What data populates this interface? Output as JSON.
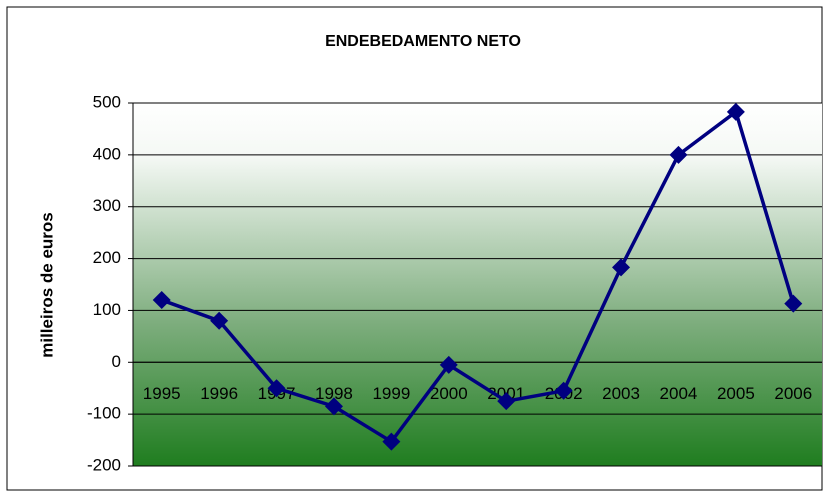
{
  "chart_data": {
    "type": "line",
    "title": "ENDEBEDAMENTO NETO",
    "y_label": "milleiros de euros",
    "categories": [
      "1995",
      "1996",
      "1997",
      "1998",
      "1999",
      "2000",
      "2001",
      "2002",
      "2003",
      "2004",
      "2005",
      "2006"
    ],
    "series": [
      {
        "name": "Endebedamento neto",
        "color": "#000080",
        "values": [
          120,
          80,
          -50,
          -85,
          -153,
          -5,
          -75,
          -55,
          183,
          400,
          483,
          113
        ]
      }
    ],
    "ylim": [
      -200,
      500
    ],
    "yticks": [
      -200,
      -100,
      0,
      100,
      200,
      300,
      400,
      500
    ],
    "grid": true
  }
}
